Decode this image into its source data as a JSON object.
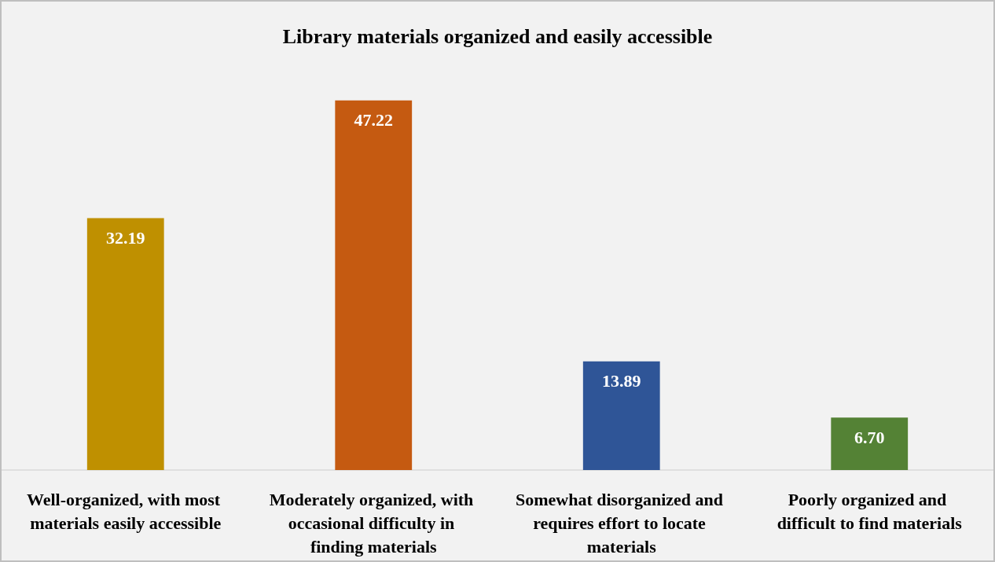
{
  "chart_data": {
    "type": "bar",
    "title": "Library materials organized and easily accessible",
    "categories": [
      "Well-organized, with most materials easily accessible",
      "Moderately organized, with occasional difficulty in finding materials",
      "Somewhat disorganized and requires effort to locate materials",
      "Poorly organized and difficult to find materials"
    ],
    "values": [
      32.19,
      47.22,
      13.89,
      6.7
    ],
    "value_labels": [
      "32.19",
      "47.22",
      "13.89",
      "6.70"
    ],
    "colors": [
      "#bf9000",
      "#c55a11",
      "#2f5597",
      "#548235"
    ]
  }
}
